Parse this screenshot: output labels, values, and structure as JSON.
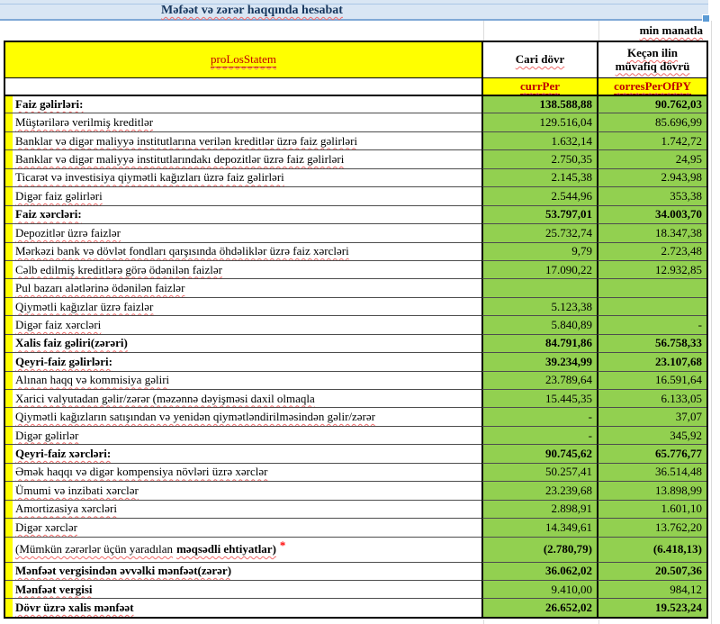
{
  "title": "Məfəət və zərər haqqında hesabat",
  "unit_note": "min manatla",
  "colors": {
    "value_green": "#92D050",
    "header_yellow": "#FFFF00",
    "title_bar_blue": "#D9E6F4",
    "code_dark_red": "#C00000",
    "asterisk_red": "#FF0000",
    "title_text_navy": "#17375E"
  },
  "table": {
    "name_cell": "proLosStatem",
    "col_current": "Cari dövr",
    "col_previous": "Keçən ilin müvafiq dövrü",
    "code_current": "currPer",
    "code_previous": "corresPerOfPY",
    "rows": [
      {
        "label": "Faiz gəlirləri:",
        "curr": "138.588,88",
        "prev": "90.762,03",
        "label_bold": true,
        "values_bold": true
      },
      {
        "label": "Müştərilərə verilmiş kreditlər",
        "curr": "129.516,04",
        "prev": "85.696,99"
      },
      {
        "label": "Banklar və digər maliyyə institutlarına verilən kreditlər üzrə faiz gəlirləri",
        "curr": "1.632,14",
        "prev": "1.742,72"
      },
      {
        "label": "Banklar və digər maliyyə institutlarındakı depozitlər üzrə faiz gəlirləri",
        "curr": "2.750,35",
        "prev": "24,95"
      },
      {
        "label": "Ticarət və investisiya qiymətli kağızları üzrə faiz gəlirləri",
        "curr": "2.145,38",
        "prev": "2.943,98"
      },
      {
        "label": "Digər faiz gəlirləri",
        "curr": "2.544,96",
        "prev": "353,38"
      },
      {
        "label": "Faiz xərcləri:",
        "curr": "53.797,01",
        "prev": "34.003,70",
        "label_bold": true,
        "values_bold": true
      },
      {
        "label": "Depozitlər üzrə faizlər",
        "curr": "25.732,74",
        "prev": "18.347,38"
      },
      {
        "label": "Mərkəzi bank və dövlət fondları qarşısında öhdəliklər üzrə faiz xərcləri",
        "curr": "9,79",
        "prev": "2.723,48"
      },
      {
        "label": "Cəlb edilmiş kreditlərə görə ödənilən faizlər",
        "curr": "17.090,22",
        "prev": "12.932,85"
      },
      {
        "label": "Pul bazarı alətlərinə ödənilən faizlər",
        "curr": "",
        "prev": ""
      },
      {
        "label": "Qiymətli kağızlar üzrə faizlər",
        "curr": "5.123,38",
        "prev": ""
      },
      {
        "label": "Digər faiz xərcləri",
        "curr": "5.840,89",
        "prev": "-"
      },
      {
        "label": "Xalis faiz gəliri(zərəri)",
        "curr": "84.791,86",
        "prev": "56.758,33",
        "label_bold": true,
        "values_bold": true
      },
      {
        "label": "Qeyri-faiz gəlirləri:",
        "curr": "39.234,99",
        "prev": "23.107,68",
        "label_bold": true,
        "values_bold": true
      },
      {
        "label": "Alınan haqq və kommisiya gəliri",
        "curr": "23.789,64",
        "prev": "16.591,64"
      },
      {
        "label": "Xarici valyutadan gəlir/zərər (məzənnə dəyişməsi daxil olmaqla",
        "curr": "15.445,35",
        "prev": "6.133,05"
      },
      {
        "label": "Qiymətli kağızların satışından və yenidən qiymətləndirilməsindən gəlir/zərər",
        "curr": "-",
        "prev": "37,07"
      },
      {
        "label": "Digər gəlirlər",
        "curr": "-",
        "prev": "345,92"
      },
      {
        "label": "Qeyri-faiz xərcləri:",
        "curr": "90.745,62",
        "prev": "65.776,77",
        "label_bold": true,
        "values_bold": true
      },
      {
        "label": "Əmək haqqı və digər kompensiya növləri üzrə xərclər",
        "curr": "50.257,41",
        "prev": "36.514,48"
      },
      {
        "label": "Ümumi və inzibati xərclər",
        "curr": "23.239,68",
        "prev": "13.898,99"
      },
      {
        "label": "Amortizasiya xərcləri",
        "curr": "2.898,91",
        "prev": "1.601,10"
      },
      {
        "label": "Digər xərclər",
        "curr": "14.349,61",
        "prev": "13.762,20"
      },
      {
        "label": "(Mümkün zərərlər üçün yaradılan",
        "bold_suffix": "məqsədli ehtiyatlar)",
        "asterisk": "*",
        "curr": "(2.780,79)",
        "prev": "(6.418,13)",
        "values_bold": true,
        "tall": true
      },
      {
        "label": "Mənfəət vergisindən əvvəlki mənfəət(zərər)",
        "curr": "36.062,02",
        "prev": "20.507,36",
        "label_bold": true,
        "values_bold": true
      },
      {
        "label": "Mənfəət vergisi",
        "curr": "9.410,00",
        "prev": "984,12",
        "label_bold": true
      },
      {
        "label": "Dövr üzrə xalis mənfəət",
        "curr": "26.652,02",
        "prev": "19.523,24",
        "label_bold": true,
        "values_bold": true
      }
    ]
  }
}
